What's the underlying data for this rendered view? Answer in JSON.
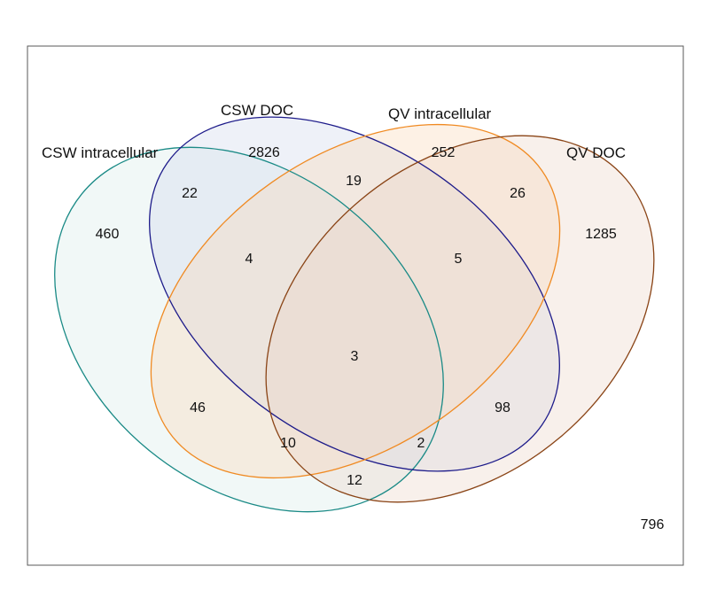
{
  "sets": [
    {
      "key": "csw_intracellular",
      "label": "CSW intracellular",
      "color": "#1a8a86",
      "fill": "#d7ece9"
    },
    {
      "key": "csw_doc",
      "label": "CSW DOC",
      "color": "#1d1b8a",
      "fill": "#cfd6ec"
    },
    {
      "key": "qv_intracellular",
      "label": "QV intracellular",
      "color": "#f08a22",
      "fill": "#f9d6b5"
    },
    {
      "key": "qv_doc",
      "label": "QV DOC",
      "color": "#8a4416",
      "fill": "#ebd4c6"
    }
  ],
  "regions": {
    "csw_intracellular_only": "460",
    "csw_doc_only": "2826",
    "qv_intracellular_only": "252",
    "qv_doc_only": "1285",
    "csw_intracellular__csw_doc": "22",
    "csw_doc__qv_intracellular": "19",
    "qv_intracellular__qv_doc": "26",
    "csw_intracellular__csw_doc__qv_intracellular": "4",
    "csw_doc__qv_intracellular__qv_doc": "5",
    "all_four": "3",
    "csw_intracellular__qv_intracellular": "46",
    "csw_doc__qv_doc": "98",
    "csw_intracellular__qv_intracellular__qv_doc": "10",
    "csw_intracellular__csw_doc__qv_doc": "2",
    "csw_intracellular__qv_doc": "12",
    "none": "796"
  }
}
